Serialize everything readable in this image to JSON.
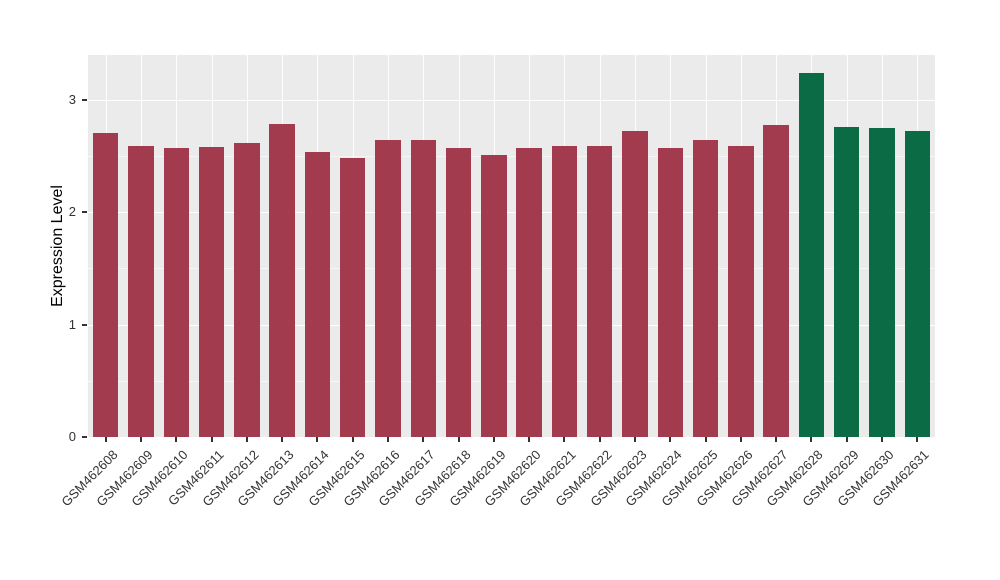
{
  "figure": {
    "background": "#FFFFFF"
  },
  "chart_data": {
    "type": "bar",
    "title": "",
    "xlabel": "",
    "ylabel": "Expression Level",
    "ylim": [
      0,
      3.4
    ],
    "yticks": [
      0,
      1,
      2,
      3
    ],
    "grid": true,
    "legend": "none",
    "plot_background": "#EBEBEB",
    "gridline_color": "#FFFFFF",
    "tick_text_color": "#333333",
    "categories": [
      "GSM462608",
      "GSM462609",
      "GSM462610",
      "GSM462611",
      "GSM462612",
      "GSM462613",
      "GSM462614",
      "GSM462615",
      "GSM462616",
      "GSM462617",
      "GSM462618",
      "GSM462619",
      "GSM462620",
      "GSM462621",
      "GSM462622",
      "GSM462623",
      "GSM462624",
      "GSM462625",
      "GSM462626",
      "GSM462627",
      "GSM462628",
      "GSM462629",
      "GSM462630",
      "GSM462631"
    ],
    "values": [
      2.71,
      2.59,
      2.57,
      2.58,
      2.62,
      2.79,
      2.54,
      2.48,
      2.64,
      2.64,
      2.57,
      2.51,
      2.57,
      2.59,
      2.59,
      2.72,
      2.57,
      2.64,
      2.59,
      2.78,
      3.24,
      2.76,
      2.75,
      2.72
    ],
    "groups": [
      "red",
      "red",
      "red",
      "red",
      "red",
      "red",
      "red",
      "red",
      "red",
      "red",
      "red",
      "red",
      "red",
      "red",
      "red",
      "red",
      "red",
      "red",
      "red",
      "red",
      "green",
      "green",
      "green",
      "green"
    ],
    "group_colors": {
      "red": "#A23B4D",
      "green": "#0B6B45"
    }
  }
}
